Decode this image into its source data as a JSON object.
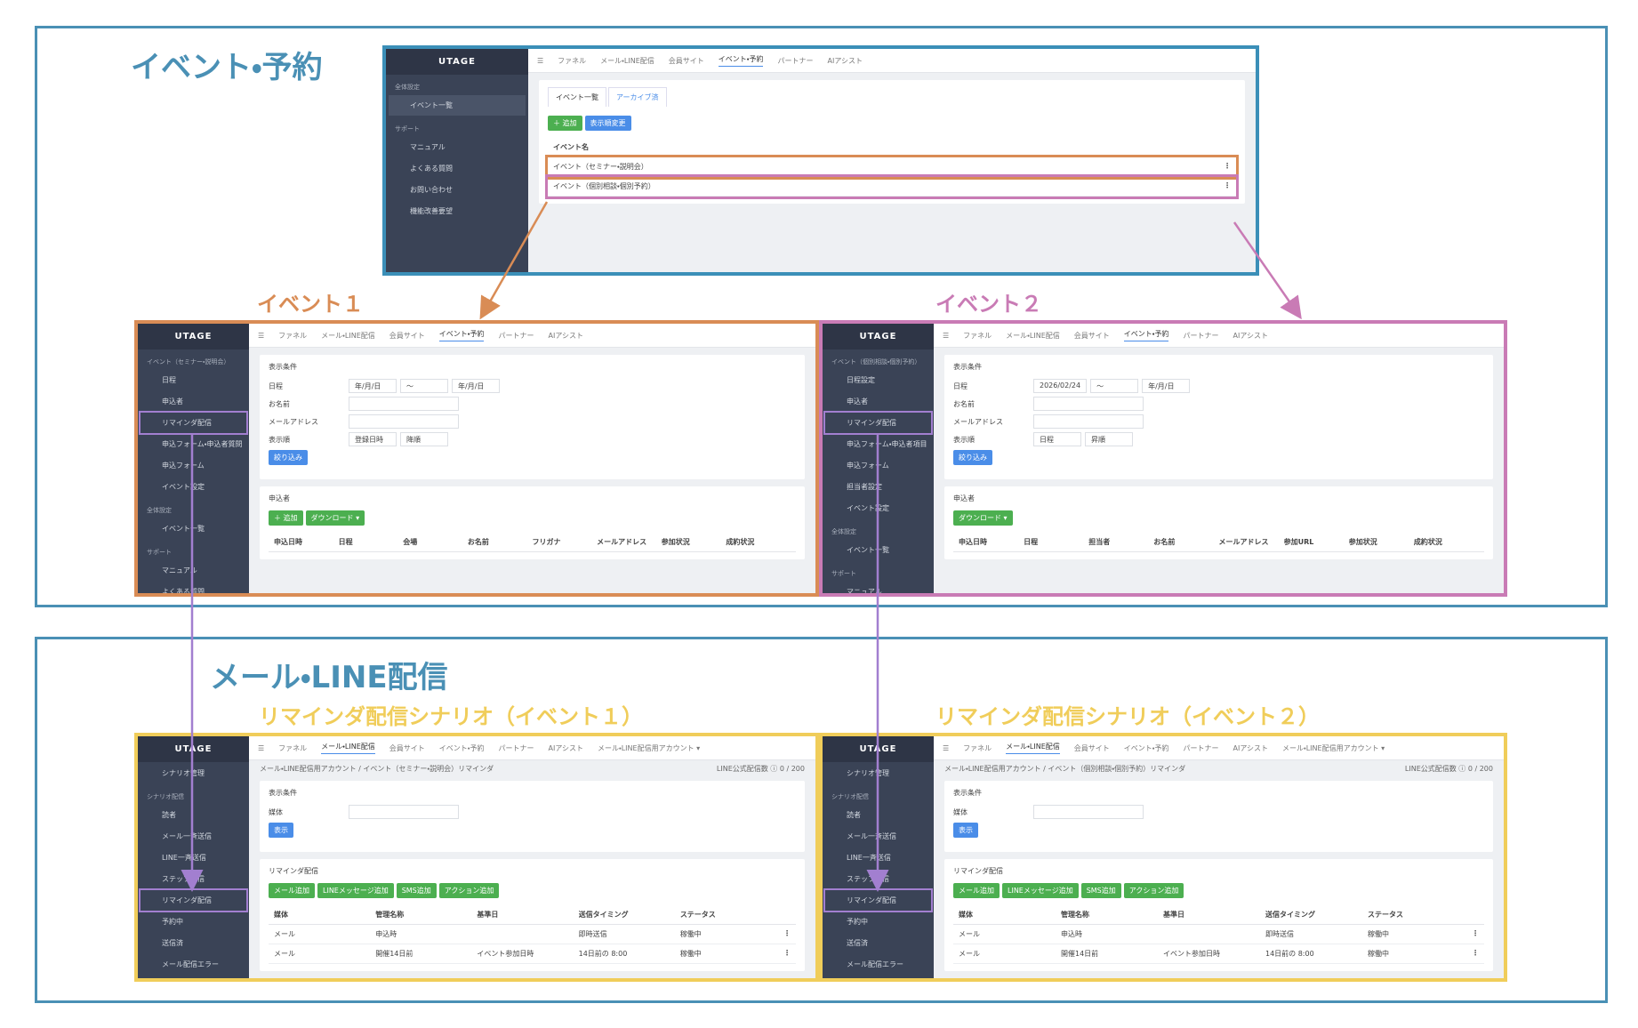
{
  "sections": [
    {
      "title": "イベント・予約",
      "color": "#4a90b5"
    },
    {
      "title": "メール・LINE配信",
      "color": "#4a90b5"
    }
  ],
  "labels": [
    {
      "text": "イベント１",
      "color": "#d98c55"
    },
    {
      "text": "イベント２",
      "color": "#c97bb5"
    },
    {
      "text": "リマインダ配信シナリオ（イベント１）",
      "color": "#f0cd5a"
    },
    {
      "text": "リマインダ配信シナリオ（イベント２）",
      "color": "#f0cd5a"
    }
  ],
  "nav": {
    "logo": "UTAGE",
    "items": [
      "ファネル",
      "メール・LINE配信",
      "会員サイト",
      "イベント・予約",
      "パートナー",
      "AIアシスト"
    ]
  },
  "screens": [
    {
      "frame_color": "#3b8fb8",
      "active_tab": 3,
      "sidebar": [
        {
          "text": "全体設定",
          "kind": "heading"
        },
        {
          "text": "イベント一覧",
          "kind": "item",
          "active": true
        },
        {
          "text": "サポート",
          "kind": "heading"
        },
        {
          "text": "マニュアル",
          "kind": "item"
        },
        {
          "text": "よくある質問",
          "kind": "item"
        },
        {
          "text": "お問い合わせ",
          "kind": "item"
        },
        {
          "text": "機能改善要望",
          "kind": "item"
        }
      ],
      "panels": [
        {
          "tabs": [
            "イベント一覧",
            "アーカイブ済"
          ],
          "buttons": [
            {
              "text": "＋ 追加",
              "color": "#4caf50"
            },
            {
              "text": "表示順変更",
              "color": "#4a8de8"
            }
          ],
          "columns": [
            "イベント名"
          ],
          "rows": [
            [
              "イベント（セミナー・説明会）"
            ],
            [
              "イベント（個別相談・個別予約）"
            ]
          ],
          "row_highlights": [
            "#d98c55",
            "#c97bb5"
          ]
        }
      ]
    },
    {
      "frame_color": "#d98c55",
      "active_tab": 3,
      "sidebar": [
        {
          "text": "イベント（セミナー・説明会）",
          "kind": "heading"
        },
        {
          "text": "日程",
          "kind": "item"
        },
        {
          "text": "申込者",
          "kind": "item"
        },
        {
          "text": "リマインダ配信",
          "kind": "item",
          "highlight": "#a27fd0"
        },
        {
          "text": "申込フォーム・申込者質問",
          "kind": "item"
        },
        {
          "text": "申込フォーム",
          "kind": "item"
        },
        {
          "text": "イベント設定",
          "kind": "item"
        },
        {
          "text": "全体設定",
          "kind": "heading"
        },
        {
          "text": "イベント一覧",
          "kind": "item"
        },
        {
          "text": "サポート",
          "kind": "heading"
        },
        {
          "text": "マニュアル",
          "kind": "item"
        },
        {
          "text": "よくある質問",
          "kind": "item"
        }
      ],
      "panels": [
        {
          "title": "表示条件",
          "fields": [
            {
              "label": "日程",
              "controls": [
                "年/月/日",
                "〜",
                "年/月/日"
              ]
            },
            {
              "label": "お名前",
              "controls": []
            },
            {
              "label": "メールアドレス",
              "controls": []
            },
            {
              "label": "表示順",
              "controls": [
                "登録日時",
                "降順"
              ]
            }
          ],
          "buttons": [
            {
              "text": "絞り込み",
              "color": "#4a8de8"
            }
          ]
        },
        {
          "title": "申込者",
          "buttons": [
            {
              "text": "＋ 追加",
              "color": "#4caf50"
            },
            {
              "text": "ダウンロード ▾",
              "color": "#4caf50"
            }
          ],
          "columns": [
            "申込日時",
            "日程",
            "会場",
            "お名前",
            "フリガナ",
            "メールアドレス",
            "参加状況",
            "成約状況"
          ]
        }
      ]
    },
    {
      "frame_color": "#c97bb5",
      "active_tab": 3,
      "sidebar": [
        {
          "text": "イベント（個別相談・個別予約）",
          "kind": "heading"
        },
        {
          "text": "日程設定",
          "kind": "item"
        },
        {
          "text": "申込者",
          "kind": "item"
        },
        {
          "text": "リマインダ配信",
          "kind": "item",
          "highlight": "#a27fd0"
        },
        {
          "text": "申込フォーム・申込者項目",
          "kind": "item"
        },
        {
          "text": "申込フォーム",
          "kind": "item"
        },
        {
          "text": "担当者設定",
          "kind": "item"
        },
        {
          "text": "イベント設定",
          "kind": "item"
        },
        {
          "text": "全体設定",
          "kind": "heading"
        },
        {
          "text": "イベント一覧",
          "kind": "item"
        },
        {
          "text": "サポート",
          "kind": "heading"
        },
        {
          "text": "マニュアル",
          "kind": "item"
        }
      ],
      "panels": [
        {
          "title": "表示条件",
          "fields": [
            {
              "label": "日程",
              "controls": [
                "2026/02/24",
                "〜",
                "年/月/日"
              ]
            },
            {
              "label": "お名前",
              "controls": []
            },
            {
              "label": "メールアドレス",
              "controls": []
            },
            {
              "label": "表示順",
              "controls": [
                "日程",
                "昇順"
              ]
            }
          ],
          "buttons": [
            {
              "text": "絞り込み",
              "color": "#4a8de8"
            }
          ]
        },
        {
          "title": "申込者",
          "buttons": [
            {
              "text": "ダウンロード ▾",
              "color": "#4caf50"
            }
          ],
          "columns": [
            "申込日時",
            "日程",
            "担当者",
            "お名前",
            "メールアドレス",
            "参加URL",
            "参加状況",
            "成約状況"
          ]
        }
      ]
    },
    {
      "frame_color": "#f0cd5a",
      "active_tab": 1,
      "account": "メール・LINE配信用アカウント ▾",
      "breadcrumb": "メール・LINE配信用アカウント / イベント（セミナー・説明会）リマインダ",
      "counter": "LINE公式配信数 ⓘ 0 / 200",
      "sidebar": [
        {
          "text": "シナリオ管理",
          "kind": "item"
        },
        {
          "text": "シナリオ配信",
          "kind": "heading"
        },
        {
          "text": "読者",
          "kind": "item"
        },
        {
          "text": "メール一斉送信",
          "kind": "item"
        },
        {
          "text": "LINE一斉送信",
          "kind": "item"
        },
        {
          "text": "ステップ配信",
          "kind": "item"
        },
        {
          "text": "リマインダ配信",
          "kind": "item",
          "highlight": "#a27fd0"
        },
        {
          "text": "予約中",
          "kind": "item"
        },
        {
          "text": "送信済",
          "kind": "item"
        },
        {
          "text": "メール配信エラー",
          "kind": "item"
        }
      ],
      "panels": [
        {
          "title": "表示条件",
          "fields": [
            {
              "label": "媒体",
              "controls": []
            }
          ],
          "buttons": [
            {
              "text": "表示",
              "color": "#4a8de8"
            }
          ]
        },
        {
          "title": "リマインダ配信",
          "buttons": [
            {
              "text": "メール追加",
              "color": "#4caf50"
            },
            {
              "text": "LINEメッセージ追加",
              "color": "#4caf50"
            },
            {
              "text": "SMS追加",
              "color": "#4caf50"
            },
            {
              "text": "アクション追加",
              "color": "#4caf50"
            }
          ],
          "columns": [
            "媒体",
            "管理名称",
            "基準日",
            "送信タイミング",
            "ステータス"
          ],
          "rows": [
            [
              "メール",
              "申込時",
              null,
              "即時送信",
              "稼働中"
            ],
            [
              "メール",
              "開催14日前",
              "イベント参加日時",
              "14日前の 8:00",
              "稼働中"
            ]
          ]
        }
      ]
    },
    {
      "frame_color": "#f0cd5a",
      "active_tab": 1,
      "account": "メール・LINE配信用アカウント ▾",
      "breadcrumb": "メール・LINE配信用アカウント / イベント（個別相談・個別予約）リマインダ",
      "counter": "LINE公式配信数 ⓘ 0 / 200",
      "sidebar": [
        {
          "text": "シナリオ管理",
          "kind": "item"
        },
        {
          "text": "シナリオ配信",
          "kind": "heading"
        },
        {
          "text": "読者",
          "kind": "item"
        },
        {
          "text": "メール一斉送信",
          "kind": "item"
        },
        {
          "text": "LINE一斉送信",
          "kind": "item"
        },
        {
          "text": "ステップ配信",
          "kind": "item"
        },
        {
          "text": "リマインダ配信",
          "kind": "item",
          "highlight": "#a27fd0"
        },
        {
          "text": "予約中",
          "kind": "item"
        },
        {
          "text": "送信済",
          "kind": "item"
        },
        {
          "text": "メール配信エラー",
          "kind": "item"
        }
      ],
      "panels": [
        {
          "title": "表示条件",
          "fields": [
            {
              "label": "媒体",
              "controls": []
            }
          ],
          "buttons": [
            {
              "text": "表示",
              "color": "#4a8de8"
            }
          ]
        },
        {
          "title": "リマインダ配信",
          "buttons": [
            {
              "text": "メール追加",
              "color": "#4caf50"
            },
            {
              "text": "LINEメッセージ追加",
              "color": "#4caf50"
            },
            {
              "text": "SMS追加",
              "color": "#4caf50"
            },
            {
              "text": "アクション追加",
              "color": "#4caf50"
            }
          ],
          "columns": [
            "媒体",
            "管理名称",
            "基準日",
            "送信タイミング",
            "ステータス"
          ],
          "rows": [
            [
              "メール",
              "申込時",
              null,
              "即時送信",
              "稼働中"
            ],
            [
              "メール",
              "開催14日前",
              "イベント参加日時",
              "14日前の 8:00",
              "稼働中"
            ]
          ]
        }
      ]
    }
  ]
}
